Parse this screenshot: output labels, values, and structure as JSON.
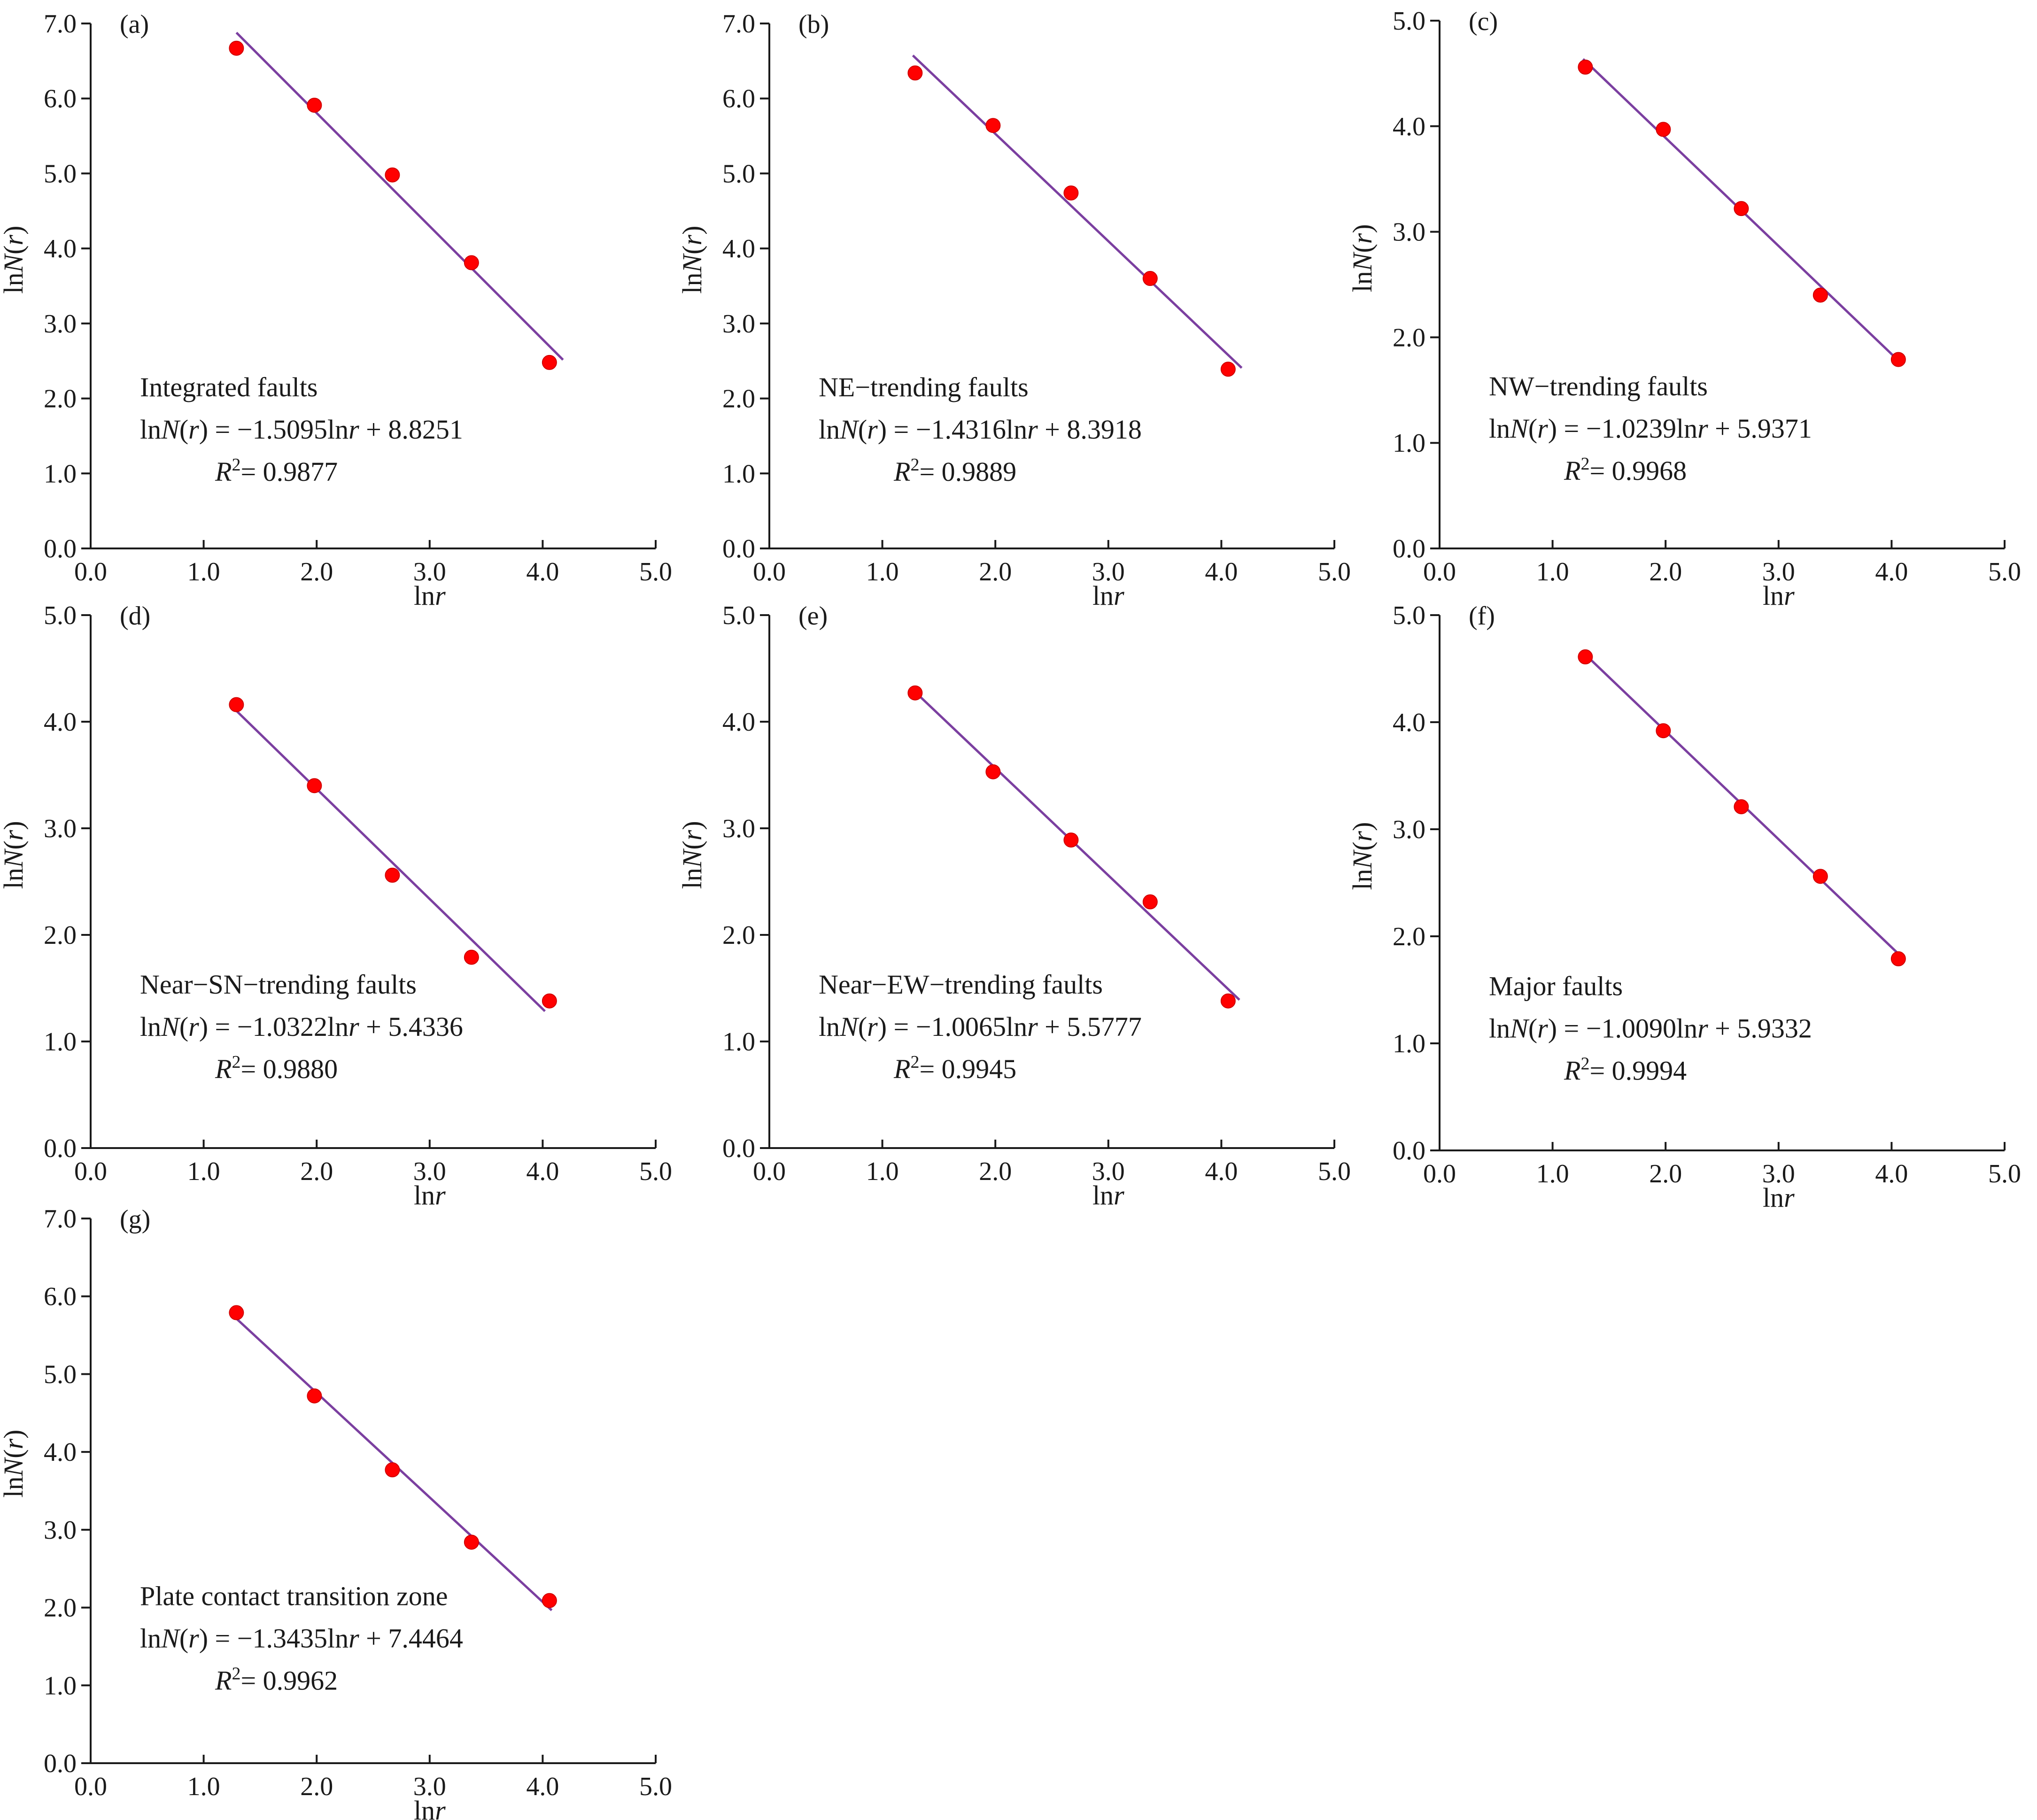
{
  "figure": {
    "colors": {
      "points": "#ff0000",
      "fit_line": "#7b3fa0",
      "axes": "#1a1a1a"
    }
  },
  "chart_data": [
    {
      "type": "scatter",
      "panel": "(a)",
      "title": "Integrated faults",
      "equation_lhs": "lnN(r)",
      "equation_rhs": "= −1.5095lnr + 8.8251",
      "r2_label": "R²= 0.9877",
      "xlabel": "lnr",
      "ylabel": "lnN(r)",
      "xlim": [
        0,
        5
      ],
      "ylim": [
        0,
        7
      ],
      "xticks": [
        "0.0",
        "1.0",
        "2.0",
        "3.0",
        "4.0",
        "5.0"
      ],
      "yticks": [
        "0.0",
        "1.0",
        "2.0",
        "3.0",
        "4.0",
        "5.0",
        "6.0",
        "7.0"
      ],
      "x": [
        1.29,
        1.98,
        2.67,
        3.37,
        4.06
      ],
      "y": [
        6.67,
        5.91,
        4.98,
        3.81,
        2.48
      ],
      "fit": {
        "slope": -1.5095,
        "intercept": 8.8251,
        "x_range": [
          1.29,
          4.18
        ]
      }
    },
    {
      "type": "scatter",
      "panel": "(b)",
      "title": "NE−trending  faults",
      "equation_lhs": "lnN(r)",
      "equation_rhs": "= −1.4316lnr + 8.3918",
      "r2_label": "R²= 0.9889",
      "xlabel": "lnr",
      "ylabel": "lnN(r)",
      "xlim": [
        0,
        5
      ],
      "ylim": [
        0,
        7
      ],
      "xticks": [
        "0.0",
        "1.0",
        "2.0",
        "3.0",
        "4.0",
        "5.0"
      ],
      "yticks": [
        "0.0",
        "1.0",
        "2.0",
        "3.0",
        "4.0",
        "5.0",
        "6.0",
        "7.0"
      ],
      "x": [
        1.29,
        1.98,
        2.67,
        3.37,
        4.06
      ],
      "y": [
        6.34,
        5.64,
        4.74,
        3.6,
        2.39
      ],
      "fit": {
        "slope": -1.4316,
        "intercept": 8.3918,
        "x_range": [
          1.27,
          4.18
        ]
      }
    },
    {
      "type": "scatter",
      "panel": "(c)",
      "title": "NW−trending  faults",
      "equation_lhs": "lnN(r)",
      "equation_rhs": "= −1.0239lnr + 5.9371",
      "r2_label": "R²= 0.9968",
      "xlabel": "lnr",
      "ylabel": "lnN(r)",
      "xlim": [
        0,
        5
      ],
      "ylim": [
        0,
        5
      ],
      "xticks": [
        "0.0",
        "1.0",
        "2.0",
        "3.0",
        "4.0",
        "5.0"
      ],
      "yticks": [
        "0.0",
        "1.0",
        "2.0",
        "3.0",
        "4.0",
        "5.0"
      ],
      "x": [
        1.29,
        1.98,
        2.67,
        3.37,
        4.06
      ],
      "y": [
        4.56,
        3.97,
        3.22,
        2.4,
        1.79
      ],
      "fit": {
        "slope": -1.0239,
        "intercept": 5.9371,
        "x_range": [
          1.27,
          4.08
        ]
      }
    },
    {
      "type": "scatter",
      "panel": "(d)",
      "title": "Near−SN−trending faults",
      "equation_lhs": "lnN(r)",
      "equation_rhs": "= −1.0322lnr + 5.4336",
      "r2_label": "R²= 0.9880",
      "xlabel": "lnr",
      "ylabel": "lnN(r)",
      "xlim": [
        0,
        5
      ],
      "ylim": [
        0,
        5
      ],
      "xticks": [
        "0.0",
        "1.0",
        "2.0",
        "3.0",
        "4.0",
        "5.0"
      ],
      "yticks": [
        "0.0",
        "1.0",
        "2.0",
        "3.0",
        "4.0",
        "5.0"
      ],
      "x": [
        1.29,
        1.98,
        2.67,
        3.37,
        4.06
      ],
      "y": [
        4.16,
        3.4,
        2.56,
        1.79,
        1.38
      ],
      "fit": {
        "slope": -1.0322,
        "intercept": 5.4336,
        "x_range": [
          1.24,
          4.02
        ]
      }
    },
    {
      "type": "scatter",
      "panel": "(e)",
      "title": "Near−EW−trending  faults",
      "equation_lhs": "lnN(r)",
      "equation_rhs": "= −1.0065lnr + 5.5777",
      "r2_label": "R²= 0.9945",
      "xlabel": "lnr",
      "ylabel": "lnN(r)",
      "xlim": [
        0,
        5
      ],
      "ylim": [
        0,
        5
      ],
      "xticks": [
        "0.0",
        "1.0",
        "2.0",
        "3.0",
        "4.0",
        "5.0"
      ],
      "yticks": [
        "0.0",
        "1.0",
        "2.0",
        "3.0",
        "4.0",
        "5.0"
      ],
      "x": [
        1.29,
        1.98,
        2.67,
        3.37,
        4.06
      ],
      "y": [
        4.27,
        3.53,
        2.89,
        2.31,
        1.38
      ],
      "fit": {
        "slope": -1.0065,
        "intercept": 5.5777,
        "x_range": [
          1.27,
          4.16
        ]
      }
    },
    {
      "type": "scatter",
      "panel": "(f)",
      "title": "Major  faults",
      "equation_lhs": "lnN(r)",
      "equation_rhs": "= −1.0090lnr + 5.9332",
      "r2_label": "R²= 0.9994",
      "xlabel": "lnr",
      "ylabel": "lnN(r)",
      "xlim": [
        0,
        5
      ],
      "ylim": [
        0,
        5
      ],
      "xticks": [
        "0.0",
        "1.0",
        "2.0",
        "3.0",
        "4.0",
        "5.0"
      ],
      "yticks": [
        "0.0",
        "1.0",
        "2.0",
        "3.0",
        "4.0",
        "5.0"
      ],
      "x": [
        1.29,
        1.98,
        2.67,
        3.37,
        4.06
      ],
      "y": [
        4.61,
        3.92,
        3.21,
        2.56,
        1.79
      ],
      "fit": {
        "slope": -1.009,
        "intercept": 5.9332,
        "x_range": [
          1.29,
          4.06
        ]
      }
    },
    {
      "type": "scatter",
      "panel": "(g)",
      "title": "Plate  contact transition zone",
      "equation_lhs": "lnN(r)",
      "equation_rhs": "= −1.3435lnr + 7.4464",
      "r2_label": "R²= 0.9962",
      "xlabel": "lnr",
      "ylabel": "lnN(r)",
      "xlim": [
        0,
        5
      ],
      "ylim": [
        0,
        7
      ],
      "xticks": [
        "0.0",
        "1.0",
        "2.0",
        "3.0",
        "4.0",
        "5.0"
      ],
      "yticks": [
        "0.0",
        "1.0",
        "2.0",
        "3.0",
        "4.0",
        "5.0",
        "6.0",
        "7.0"
      ],
      "x": [
        1.29,
        1.98,
        2.67,
        3.37,
        4.06
      ],
      "y": [
        5.79,
        4.72,
        3.77,
        2.84,
        2.09
      ],
      "fit": {
        "slope": -1.3435,
        "intercept": 7.4464,
        "x_range": [
          1.24,
          4.08
        ]
      }
    }
  ]
}
